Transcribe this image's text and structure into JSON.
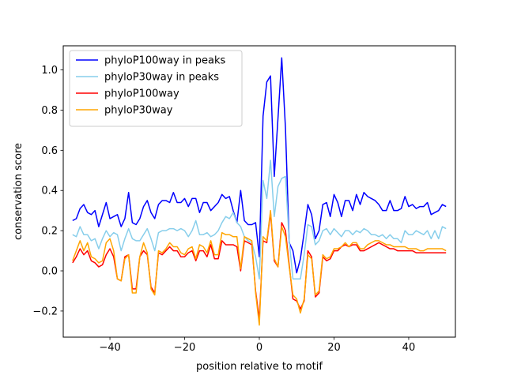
{
  "chart_data": {
    "type": "line",
    "title": "",
    "xlabel": "position relative to motif",
    "ylabel": "conservation score",
    "xlim": [
      -52.5,
      52.5
    ],
    "ylim": [
      -0.33,
      1.12
    ],
    "xticks": [
      -40,
      -20,
      0,
      20,
      40
    ],
    "yticks": [
      -0.2,
      0.0,
      0.2,
      0.4,
      0.6,
      0.8,
      1.0
    ],
    "grid": false,
    "legend_position": "top-left",
    "x": [
      -50,
      -49,
      -48,
      -47,
      -46,
      -45,
      -44,
      -43,
      -42,
      -41,
      -40,
      -39,
      -38,
      -37,
      -36,
      -35,
      -34,
      -33,
      -32,
      -31,
      -30,
      -29,
      -28,
      -27,
      -26,
      -25,
      -24,
      -23,
      -22,
      -21,
      -20,
      -19,
      -18,
      -17,
      -16,
      -15,
      -14,
      -13,
      -12,
      -11,
      -10,
      -9,
      -8,
      -7,
      -6,
      -5,
      -4,
      -3,
      -2,
      -1,
      0,
      1,
      2,
      3,
      4,
      5,
      6,
      7,
      8,
      9,
      10,
      11,
      12,
      13,
      14,
      15,
      16,
      17,
      18,
      19,
      20,
      21,
      22,
      23,
      24,
      25,
      26,
      27,
      28,
      29,
      30,
      31,
      32,
      33,
      34,
      35,
      36,
      37,
      38,
      39,
      40,
      41,
      42,
      43,
      44,
      45,
      46,
      47,
      48,
      49,
      50
    ],
    "series": [
      {
        "name": "phyloP100way in peaks",
        "color": "#0000ff",
        "values": [
          0.25,
          0.26,
          0.31,
          0.33,
          0.29,
          0.28,
          0.3,
          0.22,
          0.28,
          0.34,
          0.26,
          0.27,
          0.28,
          0.22,
          0.26,
          0.39,
          0.24,
          0.23,
          0.26,
          0.32,
          0.35,
          0.29,
          0.26,
          0.33,
          0.35,
          0.35,
          0.34,
          0.39,
          0.34,
          0.34,
          0.36,
          0.32,
          0.36,
          0.36,
          0.29,
          0.34,
          0.34,
          0.3,
          0.32,
          0.34,
          0.38,
          0.36,
          0.37,
          0.3,
          0.24,
          0.4,
          0.25,
          0.23,
          0.23,
          0.24,
          0.07,
          0.77,
          0.94,
          0.97,
          0.47,
          0.76,
          1.06,
          0.71,
          0.14,
          0.1,
          -0.01,
          0.06,
          0.19,
          0.33,
          0.28,
          0.16,
          0.2,
          0.33,
          0.34,
          0.27,
          0.38,
          0.34,
          0.27,
          0.35,
          0.35,
          0.3,
          0.38,
          0.33,
          0.39,
          0.37,
          0.36,
          0.35,
          0.33,
          0.3,
          0.3,
          0.35,
          0.3,
          0.3,
          0.31,
          0.37,
          0.32,
          0.33,
          0.31,
          0.32,
          0.32,
          0.34,
          0.28,
          0.29,
          0.3,
          0.33,
          0.32
        ]
      },
      {
        "name": "phyloP30way in peaks",
        "color": "#87ceeb",
        "values": [
          0.18,
          0.17,
          0.22,
          0.18,
          0.18,
          0.15,
          0.16,
          0.11,
          0.16,
          0.2,
          0.17,
          0.19,
          0.18,
          0.1,
          0.16,
          0.21,
          0.16,
          0.15,
          0.15,
          0.18,
          0.21,
          0.16,
          0.1,
          0.19,
          0.2,
          0.2,
          0.21,
          0.21,
          0.2,
          0.21,
          0.2,
          0.17,
          0.2,
          0.25,
          0.18,
          0.18,
          0.19,
          0.17,
          0.18,
          0.2,
          0.24,
          0.27,
          0.26,
          0.29,
          0.24,
          0.22,
          0.17,
          0.15,
          0.14,
          0.07,
          -0.04,
          0.45,
          0.36,
          0.55,
          0.27,
          0.42,
          0.46,
          0.47,
          0.15,
          -0.04,
          -0.04,
          -0.04,
          0.08,
          0.23,
          0.22,
          0.13,
          0.15,
          0.2,
          0.21,
          0.18,
          0.21,
          0.19,
          0.17,
          0.2,
          0.2,
          0.18,
          0.2,
          0.19,
          0.21,
          0.2,
          0.18,
          0.18,
          0.17,
          0.18,
          0.16,
          0.18,
          0.16,
          0.16,
          0.14,
          0.2,
          0.18,
          0.18,
          0.2,
          0.19,
          0.18,
          0.2,
          0.16,
          0.2,
          0.16,
          0.22,
          0.21
        ]
      },
      {
        "name": "phyloP100way",
        "color": "#ff0000",
        "values": [
          0.04,
          0.07,
          0.11,
          0.08,
          0.1,
          0.05,
          0.04,
          0.02,
          0.03,
          0.08,
          0.11,
          0.07,
          -0.04,
          -0.05,
          0.07,
          0.08,
          -0.09,
          -0.09,
          0.07,
          0.1,
          0.08,
          -0.08,
          -0.11,
          0.09,
          0.08,
          0.1,
          0.12,
          0.1,
          0.1,
          0.07,
          0.07,
          0.09,
          0.1,
          0.05,
          0.1,
          0.1,
          0.07,
          0.13,
          0.06,
          0.06,
          0.15,
          0.13,
          0.13,
          0.13,
          0.12,
          0.0,
          0.15,
          0.14,
          0.13,
          -0.1,
          -0.24,
          0.15,
          0.14,
          0.29,
          0.05,
          0.02,
          0.24,
          0.2,
          0.03,
          -0.14,
          -0.15,
          -0.19,
          -0.15,
          0.1,
          0.07,
          -0.13,
          -0.11,
          0.07,
          0.05,
          0.06,
          0.1,
          0.1,
          0.12,
          0.13,
          0.12,
          0.13,
          0.13,
          0.1,
          0.1,
          0.11,
          0.12,
          0.13,
          0.14,
          0.13,
          0.12,
          0.11,
          0.11,
          0.1,
          0.1,
          0.1,
          0.1,
          0.1,
          0.09,
          0.09,
          0.09,
          0.09,
          0.09,
          0.09,
          0.09,
          0.09,
          0.09
        ]
      },
      {
        "name": "phyloP30way",
        "color": "#ffa500",
        "values": [
          0.05,
          0.1,
          0.15,
          0.1,
          0.14,
          0.07,
          0.06,
          0.04,
          0.05,
          0.14,
          0.16,
          0.1,
          -0.04,
          -0.05,
          0.06,
          0.08,
          -0.11,
          -0.11,
          0.07,
          0.14,
          0.09,
          -0.09,
          -0.12,
          0.1,
          0.09,
          0.11,
          0.14,
          0.12,
          0.12,
          0.09,
          0.08,
          0.11,
          0.12,
          0.06,
          0.13,
          0.12,
          0.09,
          0.15,
          0.08,
          0.08,
          0.19,
          0.18,
          0.18,
          0.17,
          0.17,
          0.01,
          0.17,
          0.16,
          0.15,
          -0.11,
          -0.27,
          0.17,
          0.15,
          0.3,
          0.06,
          0.02,
          0.22,
          0.17,
          0.02,
          -0.12,
          -0.14,
          -0.21,
          -0.14,
          0.08,
          0.06,
          -0.12,
          -0.1,
          0.08,
          0.06,
          0.07,
          0.11,
          0.11,
          0.12,
          0.14,
          0.12,
          0.14,
          0.14,
          0.11,
          0.11,
          0.13,
          0.14,
          0.15,
          0.15,
          0.14,
          0.13,
          0.13,
          0.12,
          0.12,
          0.12,
          0.12,
          0.11,
          0.11,
          0.11,
          0.1,
          0.1,
          0.11,
          0.11,
          0.11,
          0.11,
          0.11,
          0.1
        ]
      }
    ]
  }
}
